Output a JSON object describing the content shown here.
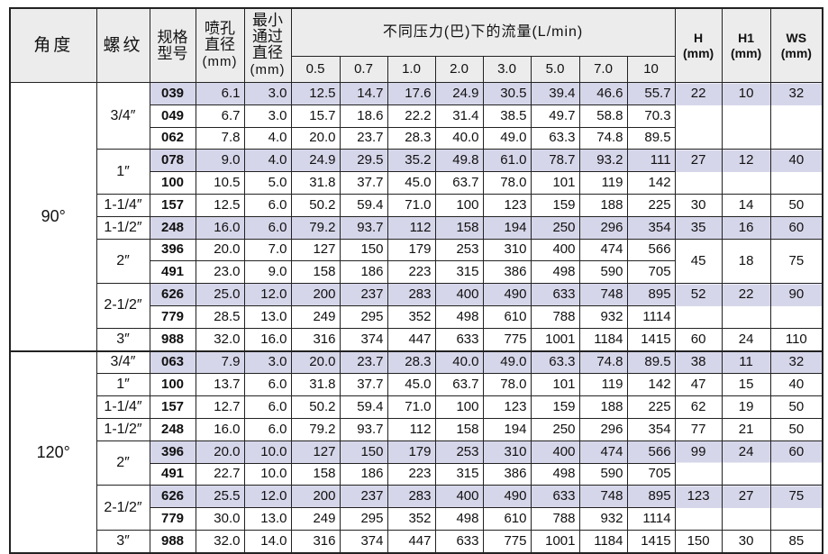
{
  "header": {
    "angle": "角度",
    "thread": "螺纹",
    "model": "规格型号",
    "orifice": "喷孔直径",
    "orifice_unit": "(mm)",
    "min_passage": "最小通过直径",
    "min_passage_unit": "(mm)",
    "flow_title": "不同压力(巴)下的流量(L/min)",
    "pressures": [
      "0.5",
      "0.7",
      "1.0",
      "2.0",
      "3.0",
      "5.0",
      "7.0",
      "10"
    ],
    "h": "H",
    "h_unit": "(mm)",
    "h1": "H1",
    "h1_unit": "(mm)",
    "ws": "WS",
    "ws_unit": "(mm)"
  },
  "colors": {
    "shaded_row": "#d6d6ea",
    "header_bg": "#ececec"
  },
  "angles": [
    {
      "label": "90°",
      "groups": [
        {
          "thread": "3/4″",
          "h": "22",
          "h1": "10",
          "ws": "32",
          "rows": [
            {
              "model": "039",
              "orifice": "6.1",
              "min": "3.0",
              "flows": [
                "12.5",
                "14.7",
                "17.6",
                "24.9",
                "30.5",
                "39.4",
                "46.6",
                "55.7"
              ],
              "shaded": true
            },
            {
              "model": "049",
              "orifice": "6.7",
              "min": "3.0",
              "flows": [
                "15.7",
                "18.6",
                "22.2",
                "31.4",
                "38.5",
                "49.7",
                "58.8",
                "70.3"
              ],
              "shaded": false
            },
            {
              "model": "062",
              "orifice": "7.8",
              "min": "4.0",
              "flows": [
                "20.0",
                "23.7",
                "28.3",
                "40.0",
                "49.0",
                "63.3",
                "74.8",
                "89.5"
              ],
              "shaded": false
            }
          ]
        },
        {
          "thread": "1″",
          "h": "27",
          "h1": "12",
          "ws": "40",
          "rows": [
            {
              "model": "078",
              "orifice": "9.0",
              "min": "4.0",
              "flows": [
                "24.9",
                "29.5",
                "35.2",
                "49.8",
                "61.0",
                "78.7",
                "93.2",
                "111"
              ],
              "shaded": true
            },
            {
              "model": "100",
              "orifice": "10.5",
              "min": "5.0",
              "flows": [
                "31.8",
                "37.7",
                "45.0",
                "63.7",
                "78.0",
                "101",
                "119",
                "142"
              ],
              "shaded": false
            }
          ]
        },
        {
          "thread": "1-1/4″",
          "h": "30",
          "h1": "14",
          "ws": "50",
          "rows": [
            {
              "model": "157",
              "orifice": "12.5",
              "min": "6.0",
              "flows": [
                "50.2",
                "59.4",
                "71.0",
                "100",
                "123",
                "159",
                "188",
                "225"
              ],
              "shaded": false
            }
          ]
        },
        {
          "thread": "1-1/2″",
          "h": "35",
          "h1": "16",
          "ws": "60",
          "rows": [
            {
              "model": "248",
              "orifice": "16.0",
              "min": "6.0",
              "flows": [
                "79.2",
                "93.7",
                "112",
                "158",
                "194",
                "250",
                "296",
                "354"
              ],
              "shaded": true
            }
          ]
        },
        {
          "thread": "2″",
          "h": "45",
          "h1": "18",
          "ws": "75",
          "rows": [
            {
              "model": "396",
              "orifice": "20.0",
              "min": "7.0",
              "flows": [
                "127",
                "150",
                "179",
                "253",
                "310",
                "400",
                "474",
                "566"
              ],
              "shaded": false
            },
            {
              "model": "491",
              "orifice": "23.0",
              "min": "9.0",
              "flows": [
                "158",
                "186",
                "223",
                "315",
                "386",
                "498",
                "590",
                "705"
              ],
              "shaded": false
            }
          ]
        },
        {
          "thread": "2-1/2″",
          "h": "52",
          "h1": "22",
          "ws": "90",
          "rows": [
            {
              "model": "626",
              "orifice": "25.0",
              "min": "12.0",
              "flows": [
                "200",
                "237",
                "283",
                "400",
                "490",
                "633",
                "748",
                "895"
              ],
              "shaded": true
            },
            {
              "model": "779",
              "orifice": "28.5",
              "min": "13.0",
              "flows": [
                "249",
                "295",
                "352",
                "498",
                "610",
                "788",
                "932",
                "1114"
              ],
              "shaded": false
            }
          ]
        },
        {
          "thread": "3″",
          "h": "60",
          "h1": "24",
          "ws": "110",
          "rows": [
            {
              "model": "988",
              "orifice": "32.0",
              "min": "16.0",
              "flows": [
                "316",
                "374",
                "447",
                "633",
                "775",
                "1001",
                "1184",
                "1415"
              ],
              "shaded": false
            }
          ]
        }
      ]
    },
    {
      "label": "120°",
      "groups": [
        {
          "thread": "3/4″",
          "h": "38",
          "h1": "11",
          "ws": "32",
          "rows": [
            {
              "model": "063",
              "orifice": "7.9",
              "min": "3.0",
              "flows": [
                "20.0",
                "23.7",
                "28.3",
                "40.0",
                "49.0",
                "63.3",
                "74.8",
                "89.5"
              ],
              "shaded": true
            }
          ]
        },
        {
          "thread": "1″",
          "h": "47",
          "h1": "15",
          "ws": "40",
          "rows": [
            {
              "model": "100",
              "orifice": "13.7",
              "min": "6.0",
              "flows": [
                "31.8",
                "37.7",
                "45.0",
                "63.7",
                "78.0",
                "101",
                "119",
                "142"
              ],
              "shaded": false
            }
          ]
        },
        {
          "thread": "1-1/4″",
          "h": "62",
          "h1": "19",
          "ws": "50",
          "rows": [
            {
              "model": "157",
              "orifice": "12.7",
              "min": "6.0",
              "flows": [
                "50.2",
                "59.4",
                "71.0",
                "100",
                "123",
                "159",
                "188",
                "225"
              ],
              "shaded": false
            }
          ]
        },
        {
          "thread": "1-1/2″",
          "h": "77",
          "h1": "21",
          "ws": "50",
          "rows": [
            {
              "model": "248",
              "orifice": "16.0",
              "min": "6.0",
              "flows": [
                "79.2",
                "93.7",
                "112",
                "158",
                "194",
                "250",
                "296",
                "354"
              ],
              "shaded": false
            }
          ]
        },
        {
          "thread": "2″",
          "h": "99",
          "h1": "24",
          "ws": "60",
          "rows": [
            {
              "model": "396",
              "orifice": "20.0",
              "min": "10.0",
              "flows": [
                "127",
                "150",
                "179",
                "253",
                "310",
                "400",
                "474",
                "566"
              ],
              "shaded": true
            },
            {
              "model": "491",
              "orifice": "22.7",
              "min": "10.0",
              "flows": [
                "158",
                "186",
                "223",
                "315",
                "386",
                "498",
                "590",
                "705"
              ],
              "shaded": false
            }
          ]
        },
        {
          "thread": "2-1/2″",
          "h": "123",
          "h1": "27",
          "ws": "75",
          "rows": [
            {
              "model": "626",
              "orifice": "25.5",
              "min": "12.0",
              "flows": [
                "200",
                "237",
                "283",
                "400",
                "490",
                "633",
                "748",
                "895"
              ],
              "shaded": true
            },
            {
              "model": "779",
              "orifice": "30.0",
              "min": "13.0",
              "flows": [
                "249",
                "295",
                "352",
                "498",
                "610",
                "788",
                "932",
                "1114"
              ],
              "shaded": false
            }
          ]
        },
        {
          "thread": "3″",
          "h": "150",
          "h1": "30",
          "ws": "85",
          "rows": [
            {
              "model": "988",
              "orifice": "32.0",
              "min": "14.0",
              "flows": [
                "316",
                "374",
                "447",
                "633",
                "775",
                "1001",
                "1184",
                "1415"
              ],
              "shaded": false
            }
          ]
        }
      ]
    }
  ]
}
